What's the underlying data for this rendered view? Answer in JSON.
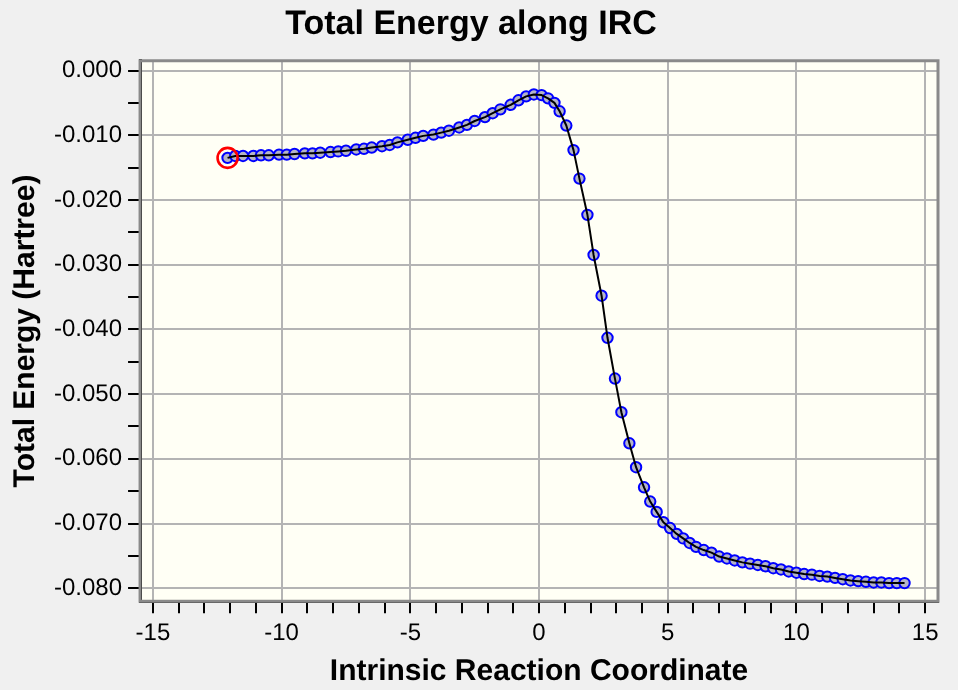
{
  "chart_data": {
    "type": "line",
    "title": "Total Energy along IRC",
    "xlabel": "Intrinsic Reaction Coordinate",
    "ylabel": "Total Energy (Hartree)",
    "xlim": [
      -15.5,
      15.5
    ],
    "ylim": [
      -0.082,
      0.0015
    ],
    "xticks": [
      -15,
      {
        "value": -14,
        "label": null
      },
      {
        "value": -13,
        "label": null
      },
      {
        "value": -12,
        "label": null
      },
      {
        "value": -11,
        "label": null
      },
      -10,
      {
        "value": -9,
        "label": null
      },
      {
        "value": -8,
        "label": null
      },
      {
        "value": -7,
        "label": null
      },
      {
        "value": -6,
        "label": null
      },
      -5,
      {
        "value": -4,
        "label": null
      },
      {
        "value": -3,
        "label": null
      },
      {
        "value": -2,
        "label": null
      },
      {
        "value": -1,
        "label": null
      },
      0,
      {
        "value": 1,
        "label": null
      },
      {
        "value": 2,
        "label": null
      },
      {
        "value": 3,
        "label": null
      },
      {
        "value": 4,
        "label": null
      },
      5,
      {
        "value": 6,
        "label": null
      },
      {
        "value": 7,
        "label": null
      },
      {
        "value": 8,
        "label": null
      },
      {
        "value": 9,
        "label": null
      },
      10,
      {
        "value": 11,
        "label": null
      },
      {
        "value": 12,
        "label": null
      },
      {
        "value": 13,
        "label": null
      },
      {
        "value": 14,
        "label": null
      },
      15
    ],
    "yticks": [
      {
        "value": -0.08,
        "label": "-0.080"
      },
      {
        "value": -0.075,
        "label": null
      },
      {
        "value": -0.07,
        "label": "-0.070"
      },
      {
        "value": -0.065,
        "label": null
      },
      {
        "value": -0.06,
        "label": "-0.060"
      },
      {
        "value": -0.055,
        "label": null
      },
      {
        "value": -0.05,
        "label": "-0.050"
      },
      {
        "value": -0.045,
        "label": null
      },
      {
        "value": -0.04,
        "label": "-0.040"
      },
      {
        "value": -0.035,
        "label": null
      },
      {
        "value": -0.03,
        "label": "-0.030"
      },
      {
        "value": -0.025,
        "label": null
      },
      {
        "value": -0.02,
        "label": "-0.020"
      },
      {
        "value": -0.015,
        "label": null
      },
      {
        "value": -0.01,
        "label": "-0.010"
      },
      {
        "value": -0.005,
        "label": null
      },
      {
        "value": 0,
        "label": "0.000"
      }
    ],
    "grid": true,
    "marker": "circle",
    "line_style": "solid",
    "series": [
      {
        "color": "#0000ff",
        "x": [
          -12.1,
          -11.8,
          -11.5,
          -11.1,
          -10.8,
          -10.5,
          -10.1,
          -9.8,
          -9.5,
          -9.1,
          -8.8,
          -8.5,
          -8.1,
          -7.8,
          -7.5,
          -7.1,
          -6.8,
          -6.5,
          -6.1,
          -5.8,
          -5.5,
          -5.1,
          -4.8,
          -4.5,
          -4.1,
          -3.8,
          -3.5,
          -3.1,
          -2.8,
          -2.5,
          -2.1,
          -1.8,
          -1.5,
          -1.1,
          -0.8,
          -0.5,
          -0.2,
          0.1,
          0.35,
          0.6,
          0.8,
          1.06,
          1.34,
          1.57,
          1.88,
          2.12,
          2.43,
          2.66,
          2.95,
          3.2,
          3.51,
          3.77,
          4.08,
          4.32,
          4.57,
          4.83,
          5.09,
          5.35,
          5.6,
          5.85,
          6.1,
          6.4,
          6.7,
          7.0,
          7.3,
          7.6,
          7.9,
          8.2,
          8.5,
          8.8,
          9.1,
          9.4,
          9.7,
          10.0,
          10.3,
          10.6,
          10.9,
          11.2,
          11.5,
          11.8,
          12.1,
          12.4,
          12.7,
          13.0,
          13.3,
          13.6,
          13.9,
          14.2
        ],
        "values": [
          -0.0135,
          -0.0132,
          -0.0132,
          -0.0132,
          -0.0131,
          -0.0131,
          -0.013,
          -0.013,
          -0.0129,
          -0.0128,
          -0.0128,
          -0.0127,
          -0.0126,
          -0.0125,
          -0.0124,
          -0.0122,
          -0.0121,
          -0.0119,
          -0.0117,
          -0.0115,
          -0.0111,
          -0.0107,
          -0.0104,
          -0.0101,
          -0.0099,
          -0.0096,
          -0.0093,
          -0.0088,
          -0.0084,
          -0.0078,
          -0.0072,
          -0.0066,
          -0.006,
          -0.0053,
          -0.0046,
          -0.004,
          -0.0037,
          -0.0038,
          -0.0043,
          -0.005,
          -0.0063,
          -0.0085,
          -0.0123,
          -0.0167,
          -0.0223,
          -0.0285,
          -0.0348,
          -0.0413,
          -0.0476,
          -0.0528,
          -0.0576,
          -0.0613,
          -0.0644,
          -0.0666,
          -0.0682,
          -0.0698,
          -0.0707,
          -0.0716,
          -0.0723,
          -0.073,
          -0.0736,
          -0.0741,
          -0.0745,
          -0.0751,
          -0.0754,
          -0.0757,
          -0.076,
          -0.0762,
          -0.0764,
          -0.0766,
          -0.0769,
          -0.0771,
          -0.0774,
          -0.0776,
          -0.0778,
          -0.0779,
          -0.0781,
          -0.0782,
          -0.0784,
          -0.0786,
          -0.0788,
          -0.0789,
          -0.079,
          -0.0791,
          -0.0791,
          -0.0792,
          -0.0792,
          -0.0792
        ]
      },
      {
        "type": "scatter",
        "color": "#ff0000",
        "x": [
          -12.1
        ],
        "values": [
          -0.0135
        ]
      }
    ]
  }
}
